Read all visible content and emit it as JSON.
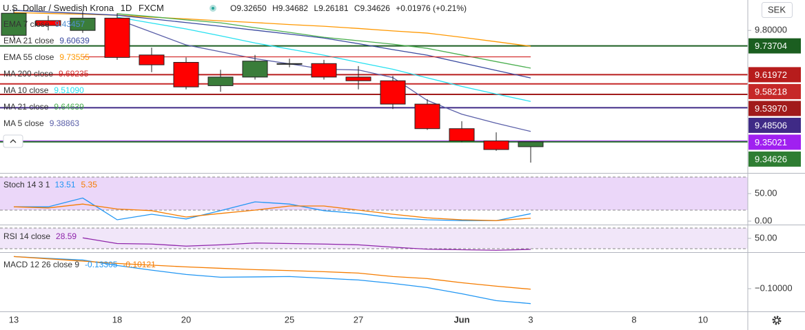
{
  "header": {
    "symbol": "U.S. Dollar / Swedish Krona",
    "interval": "1D",
    "exchange": "FXCM",
    "open": "O9.32650",
    "high": "H9.34682",
    "low": "L9.26181",
    "close": "C9.34626",
    "change": "+0.01976 (+0.21%)"
  },
  "currency_button": "SEK",
  "chart_data": [
    {
      "type": "candlestick",
      "categories": [
        "13",
        null,
        null,
        "18",
        null,
        "20",
        null,
        null,
        "25",
        null,
        "27",
        null,
        null,
        "Jun",
        null,
        "3"
      ],
      "extra_x_labels": [
        "8",
        "10"
      ],
      "open": [
        9.78,
        9.84,
        9.8,
        9.85,
        9.7,
        9.67,
        9.575,
        9.61,
        9.662,
        9.665,
        9.61,
        9.595,
        9.5,
        9.4,
        9.35,
        9.3265
      ],
      "high": [
        9.89,
        9.86,
        9.88,
        9.87,
        9.73,
        9.69,
        9.64,
        9.7,
        9.685,
        9.68,
        9.655,
        9.615,
        9.52,
        9.43,
        9.385,
        9.34682
      ],
      "low": [
        9.77,
        9.8,
        9.79,
        9.68,
        9.63,
        9.56,
        9.55,
        9.6,
        9.65,
        9.6,
        9.56,
        9.48,
        9.395,
        9.345,
        9.31,
        9.26181
      ],
      "close": [
        9.87,
        9.82,
        9.85,
        9.69,
        9.66,
        9.57,
        9.61,
        9.675,
        9.665,
        9.61,
        9.595,
        9.5,
        9.4,
        9.35,
        9.315,
        9.34626
      ],
      "up_color": "#3a7d3a",
      "down_color": "#ff0000",
      "ylim": [
        9.2197,
        9.9239
      ],
      "yticks": [
        {
          "value": 9.8,
          "label": "9.80000"
        }
      ],
      "series": [
        {
          "color": "#ff9800",
          "values": [
            9.873,
            9.869,
            9.866,
            9.862,
            9.854,
            9.847,
            9.839,
            9.832,
            9.824,
            9.817,
            9.808,
            9.798,
            9.789,
            9.772,
            9.754,
            9.7356
          ]
        },
        {
          "color": "#3a4aa0",
          "values": [
            9.882,
            9.875,
            9.869,
            9.862,
            9.847,
            9.832,
            9.817,
            9.801,
            9.785,
            9.769,
            9.746,
            9.722,
            9.699,
            9.668,
            9.637,
            9.6064
          ]
        },
        {
          "color": "#4caf50",
          "values": [
            null,
            null,
            null,
            9.868,
            9.856,
            9.843,
            9.831,
            9.811,
            9.792,
            9.772,
            9.758,
            9.744,
            9.727,
            9.7,
            9.673,
            9.6464
          ]
        },
        {
          "color": "#26e0f0",
          "values": [
            null,
            null,
            null,
            9.854,
            9.83,
            9.806,
            9.778,
            9.749,
            9.724,
            9.699,
            9.67,
            9.642,
            9.607,
            9.572,
            9.541,
            9.5109
          ]
        },
        {
          "color": "#5a5fa8",
          "values": [
            null,
            null,
            null,
            9.845,
            9.793,
            9.741,
            9.713,
            9.685,
            9.664,
            9.642,
            9.639,
            9.608,
            9.515,
            9.459,
            9.422,
            9.3886
          ]
        },
        {
          "color": "#d32f2f",
          "values": [
            null,
            null,
            9.6925,
            9.6925,
            9.6925,
            9.6925,
            9.6925,
            9.6925,
            9.6925,
            9.6925,
            9.6925,
            9.6925,
            9.6925,
            9.6925,
            9.6925,
            9.6925
          ]
        }
      ],
      "legend": [
        {
          "name": "EMA 7 close",
          "value": "9.43457",
          "color": "#4f8fd0"
        },
        {
          "name": "EMA 21 close",
          "value": "9.60639",
          "color": "#3a4aa0"
        },
        {
          "name": "EMA 55 close",
          "value": "9.73555",
          "color": "#ff9800"
        },
        {
          "name": "MA 200 close",
          "value": "9.69235",
          "color": "#d32f2f"
        },
        {
          "name": "MA 10 close",
          "value": "9.51090",
          "color": "#26e0f0"
        },
        {
          "name": "MA 21 close",
          "value": "9.64639",
          "color": "#4caf50"
        },
        {
          "name": "MA 5 close",
          "value": "9.38863",
          "color": "#5a5fa8"
        }
      ],
      "price_lines": [
        {
          "value": 9.73704,
          "label": "9.73704",
          "color": "#1b5e20"
        },
        {
          "value": 9.61972,
          "label": "9.61972",
          "color": "#b71c1c"
        },
        {
          "value": 9.58218,
          "label": "9.58218",
          "color": "#c62828"
        },
        {
          "value": 9.5397,
          "label": "9.53970",
          "color": "#a11b1b"
        },
        {
          "value": 9.48506,
          "label": "9.48506",
          "color": "#3f2a86"
        },
        {
          "value": 9.35021,
          "label": "9.35021",
          "color": "#a020f0"
        },
        {
          "value": 9.34626,
          "label": "9.34626",
          "color": "#2e7d32"
        }
      ]
    },
    {
      "type": "line",
      "title": "Stoch 14 3 1",
      "ylim": [
        -6.25,
        86.25
      ],
      "yticks": [
        {
          "value": 50,
          "label": "50.00"
        },
        {
          "value": 0,
          "label": "0.00"
        }
      ],
      "band": [
        20,
        80
      ],
      "band_color": "#e6cdf7",
      "series": [
        {
          "color": "#2196f3",
          "values": [
            26,
            26,
            42,
            2.5,
            12.5,
            4,
            19,
            35,
            31,
            19,
            14,
            6,
            2.5,
            1,
            1,
            13.51
          ]
        },
        {
          "color": "#f57c00",
          "values": [
            26,
            24,
            31,
            22,
            19,
            7.5,
            14,
            20,
            27.5,
            27.5,
            20,
            12.5,
            6,
            2.5,
            1,
            5.35
          ]
        }
      ]
    },
    {
      "type": "line",
      "title": "RSI 14 close",
      "ylim": [
        23.3,
        75.3
      ],
      "yticks": [
        {
          "value": 50,
          "label": "50.00"
        }
      ],
      "band": [
        30,
        70
      ],
      "band_color": "#ede0f7",
      "series": [
        {
          "color": "#8e24aa",
          "values": [
            null,
            null,
            51,
            40,
            39,
            35,
            37.5,
            41,
            40,
            39,
            37.5,
            33,
            29,
            28,
            27,
            28.59
          ]
        }
      ]
    },
    {
      "type": "line",
      "title": "MACD 12 26 close 9",
      "ylim": [
        -0.1503,
        -0.0223
      ],
      "yticks": [
        {
          "value": -0.1,
          "label": "−0.10000"
        }
      ],
      "series": [
        {
          "color": "#2196f3",
          "values": [
            -0.029,
            -0.033,
            -0.0366,
            -0.0488,
            -0.059,
            -0.0686,
            -0.0747,
            -0.074,
            -0.0732,
            -0.077,
            -0.0808,
            -0.0884,
            -0.0976,
            -0.1113,
            -0.1265,
            -0.13305
          ]
        },
        {
          "color": "#f57c00",
          "values": [
            -0.029,
            -0.034,
            -0.039,
            -0.0442,
            -0.048,
            -0.0518,
            -0.055,
            -0.0579,
            -0.06,
            -0.0625,
            -0.0655,
            -0.0732,
            -0.0777,
            -0.0869,
            -0.0945,
            -0.10121
          ]
        }
      ]
    }
  ]
}
